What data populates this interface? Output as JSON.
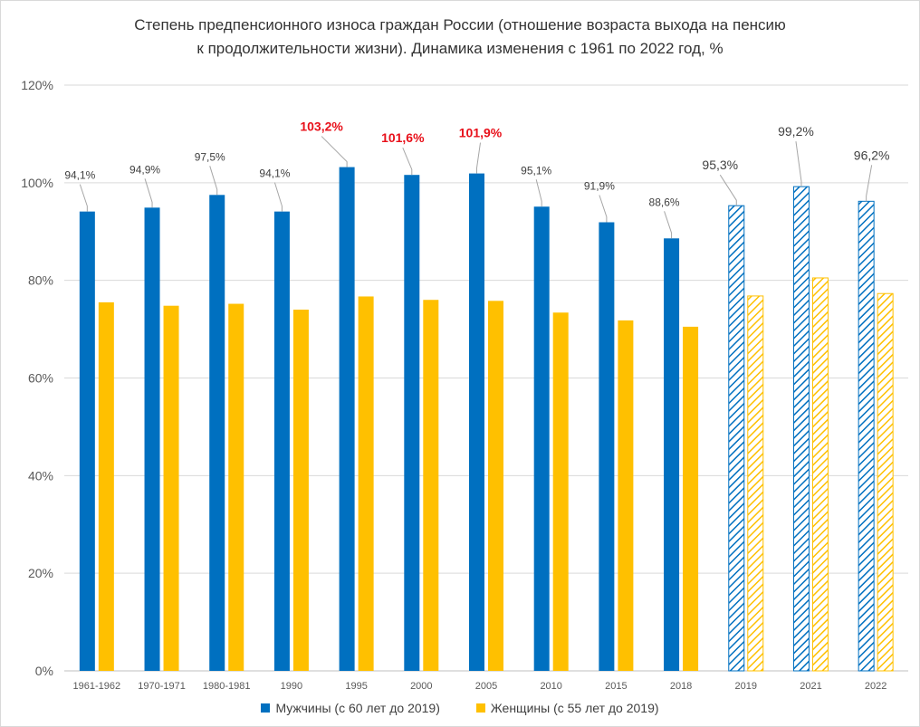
{
  "chart_data": {
    "type": "bar",
    "title": [
      "Степень предпенсионного износа граждан России (отношение возраста выхода на пенсию",
      "к продолжительности жизни). Динамика изменения с 1961 по 2022 год, %"
    ],
    "categories": [
      "1961-1962",
      "1970-1971",
      "1980-1981",
      "1990",
      "1995",
      "2000",
      "2005",
      "2010",
      "2015",
      "2018",
      "2019",
      "2021",
      "2022"
    ],
    "ylim": [
      0,
      120
    ],
    "yticks": [
      "0%",
      "20%",
      "40%",
      "60%",
      "80%",
      "100%",
      "120%"
    ],
    "grid": true,
    "legend_position": "bottom",
    "series": [
      {
        "name": "Мужчины  (с 60 лет до 2019)",
        "color": "#0070c0",
        "values": [
          94.1,
          94.9,
          97.5,
          94.1,
          103.2,
          101.6,
          101.9,
          95.1,
          91.9,
          88.6,
          95.3,
          99.2,
          96.2
        ],
        "labels": [
          "94,1%",
          "94,9%",
          "97,5%",
          "94,1%",
          "103,2%",
          "101,6%",
          "101,9%",
          "95,1%",
          "91,9%",
          "88,6%",
          "95,3%",
          "99,2%",
          "96,2%"
        ]
      },
      {
        "name": "Женщины (с 55 лет до 2019)",
        "color": "#ffc000",
        "values": [
          75.5,
          74.8,
          75.2,
          74.0,
          76.7,
          76.0,
          75.8,
          73.4,
          71.8,
          70.5,
          76.8,
          80.5,
          77.3
        ]
      }
    ],
    "highlighted_labels": [
      "103,2%",
      "101,6%",
      "101,9%"
    ],
    "hatched_categories": [
      "2019",
      "2021",
      "2022"
    ]
  }
}
